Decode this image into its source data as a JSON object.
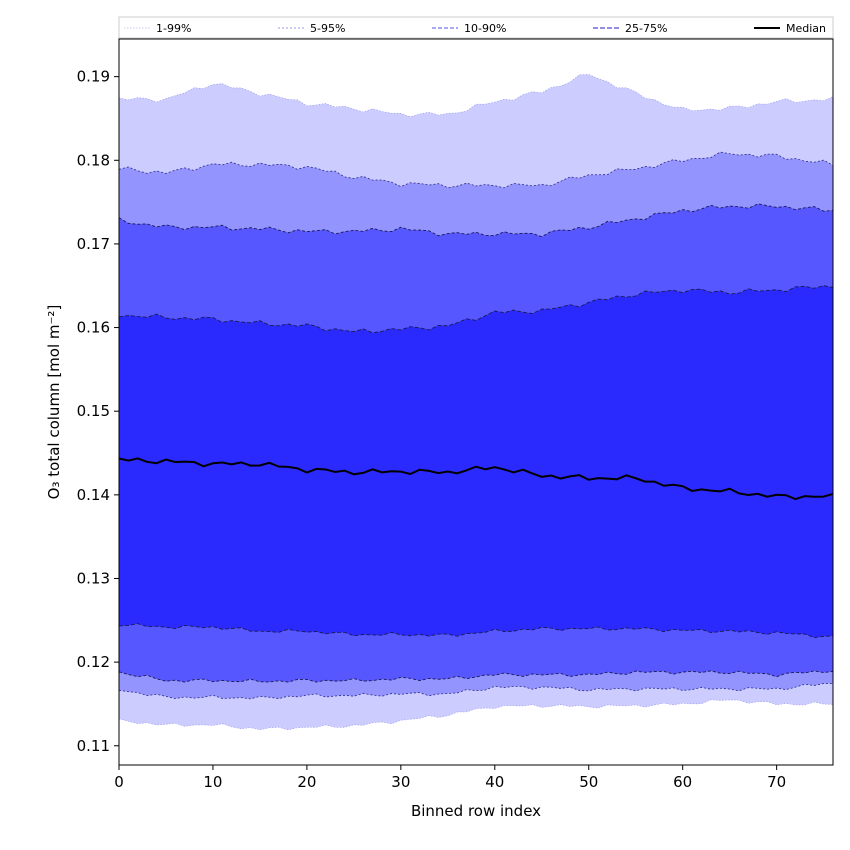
{
  "chart_data": {
    "type": "area",
    "xlabel": "Binned row index",
    "ylabel": "O₃ total column [mol m⁻²]",
    "xlim": [
      0,
      76
    ],
    "ylim": [
      0.1077,
      0.1945
    ],
    "xticks": [
      0,
      10,
      20,
      30,
      40,
      50,
      60,
      70
    ],
    "yticks": [
      0.11,
      0.12,
      0.13,
      0.14,
      0.15,
      0.16,
      0.17,
      0.18,
      0.19
    ],
    "ytick_labels": [
      "0.11",
      "0.12",
      "0.13",
      "0.14",
      "0.15",
      "0.16",
      "0.17",
      "0.18",
      "0.19"
    ],
    "grid": false,
    "legend_position": "top",
    "colors": {
      "band_1_99": "#ccccff",
      "band_5_95": "#9494ff",
      "band_10_90": "#5757ff",
      "band_25_75": "#2a2aff",
      "median": "#000000"
    },
    "x_anchors": [
      0,
      5,
      10,
      15,
      20,
      25,
      30,
      35,
      40,
      45,
      50,
      55,
      60,
      65,
      70,
      76
    ],
    "series": [
      {
        "name": "1-99%",
        "lower": [
          0.113,
          0.1125,
          0.1125,
          0.112,
          0.1122,
          0.1124,
          0.113,
          0.1137,
          0.1147,
          0.1148,
          0.1147,
          0.1148,
          0.115,
          0.1155,
          0.115,
          0.115
        ],
        "upper": [
          0.1873,
          0.1873,
          0.1892,
          0.188,
          0.1868,
          0.1862,
          0.1855,
          0.1855,
          0.187,
          0.1882,
          0.1903,
          0.188,
          0.186,
          0.1862,
          0.187,
          0.1873
        ]
      },
      {
        "name": "5-95%",
        "lower": [
          0.1167,
          0.1158,
          0.1158,
          0.1157,
          0.116,
          0.116,
          0.1162,
          0.1162,
          0.117,
          0.117,
          0.1167,
          0.1168,
          0.1168,
          0.1168,
          0.1168,
          0.1175
        ],
        "upper": [
          0.179,
          0.1785,
          0.1795,
          0.1795,
          0.1792,
          0.178,
          0.1772,
          0.177,
          0.177,
          0.177,
          0.1782,
          0.179,
          0.18,
          0.1808,
          0.1805,
          0.1795
        ]
      },
      {
        "name": "10-90%",
        "lower": [
          0.1188,
          0.1178,
          0.1178,
          0.1177,
          0.1178,
          0.1178,
          0.118,
          0.118,
          0.1185,
          0.1185,
          0.1185,
          0.1188,
          0.1188,
          0.1188,
          0.1185,
          0.119
        ],
        "upper": [
          0.1728,
          0.172,
          0.172,
          0.1718,
          0.1715,
          0.1715,
          0.1718,
          0.1712,
          0.1712,
          0.1712,
          0.172,
          0.173,
          0.174,
          0.1745,
          0.1745,
          0.174
        ]
      },
      {
        "name": "25-75%",
        "lower": [
          0.1245,
          0.1242,
          0.1242,
          0.1237,
          0.1237,
          0.1233,
          0.1233,
          0.1232,
          0.1237,
          0.124,
          0.124,
          0.124,
          0.1238,
          0.1237,
          0.1235,
          0.123
        ],
        "upper": [
          0.1615,
          0.1612,
          0.161,
          0.1605,
          0.1602,
          0.1595,
          0.1598,
          0.1602,
          0.1618,
          0.162,
          0.163,
          0.164,
          0.1645,
          0.1642,
          0.1645,
          0.165
        ]
      },
      {
        "name": "Median",
        "values": [
          0.1442,
          0.144,
          0.1437,
          0.1437,
          0.143,
          0.1427,
          0.1428,
          0.1427,
          0.1433,
          0.1423,
          0.142,
          0.142,
          0.1408,
          0.1404,
          0.1398,
          0.1398
        ]
      }
    ],
    "legend": [
      "1-99%",
      "5-95%",
      "10-90%",
      "25-75%",
      "Median"
    ]
  }
}
